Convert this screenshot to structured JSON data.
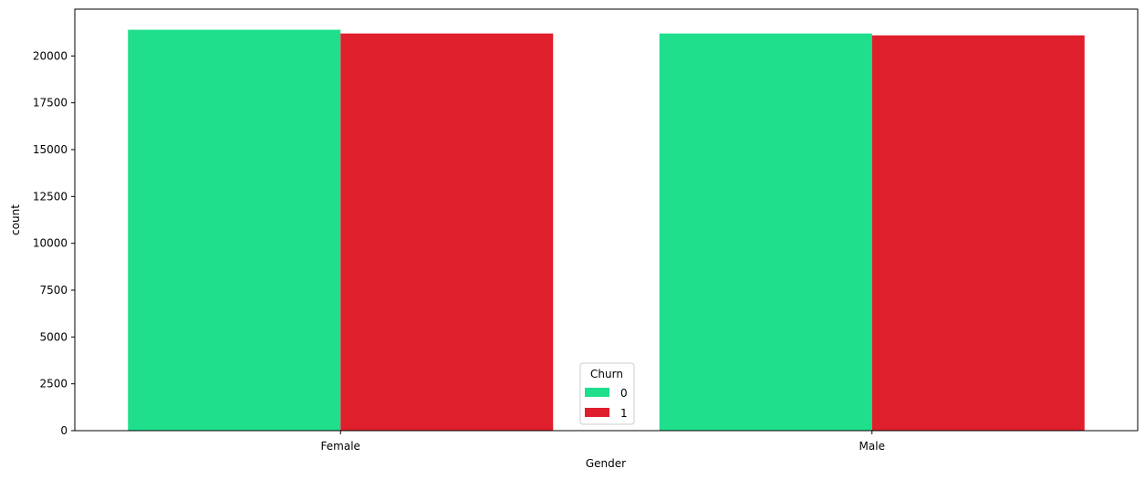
{
  "chart_data": {
    "type": "bar",
    "xlabel": "Gender",
    "ylabel": "count",
    "categories": [
      "Female",
      "Male"
    ],
    "series": [
      {
        "name": "0",
        "color": "#1fdf8d",
        "values": [
          21400,
          21200
        ]
      },
      {
        "name": "1",
        "color": "#e01f2c",
        "values": [
          21200,
          21100
        ]
      }
    ],
    "ylim": [
      0,
      22500
    ],
    "yticks": [
      0,
      2500,
      5000,
      7500,
      10000,
      12500,
      15000,
      17500,
      20000
    ],
    "ytick_labels": [
      "0",
      "2500",
      "5000",
      "7500",
      "10000",
      "12500",
      "15000",
      "17500",
      "20000"
    ],
    "legend": {
      "title": "Churn",
      "placement": "lower-center"
    },
    "grid": false
  }
}
